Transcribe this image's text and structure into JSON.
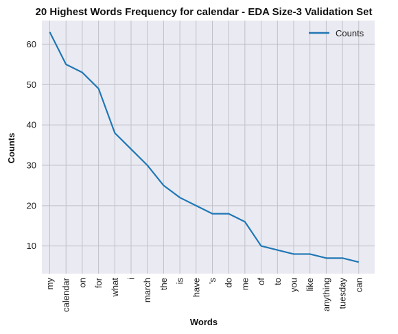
{
  "chart_data": {
    "type": "line",
    "title": "20 Highest Words Frequency for calendar - EDA Size-3 Validation Set",
    "xlabel": "Words",
    "ylabel": "Counts",
    "categories": [
      "my",
      "calendar",
      "on",
      "for",
      "what",
      "i",
      "march",
      "the",
      "is",
      "have",
      "'s",
      "do",
      "me",
      "of",
      "to",
      "you",
      "like",
      "anything",
      "tuesday",
      "can"
    ],
    "series": [
      {
        "name": "Counts",
        "values": [
          63,
          55,
          53,
          49,
          38,
          34,
          30,
          25,
          22,
          20,
          18,
          18,
          16,
          10,
          9,
          8,
          8,
          7,
          7,
          6
        ],
        "color": "#1f77b4"
      }
    ],
    "ylim": [
      3.15,
      65.85
    ],
    "yticks": [
      10,
      20,
      30,
      40,
      50,
      60
    ],
    "grid": true,
    "legend": "top-right",
    "background": "#eaeaf2",
    "grid_color": "#c0c0c8"
  }
}
